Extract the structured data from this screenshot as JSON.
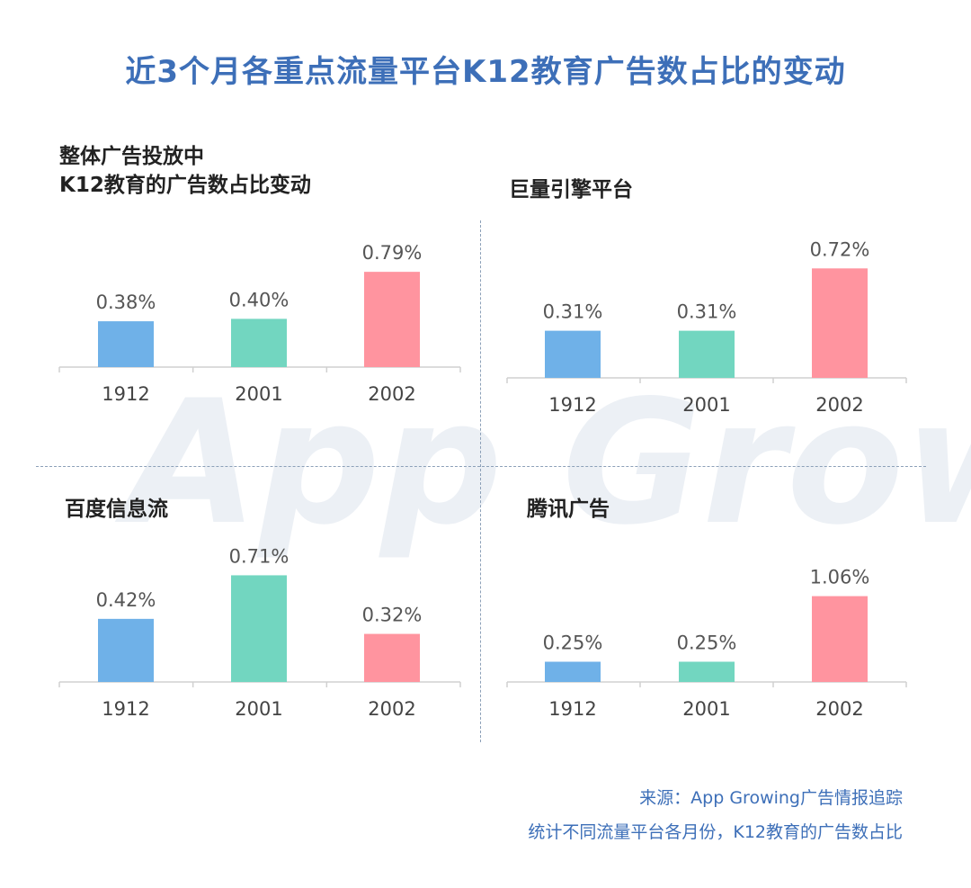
{
  "title": "近3个月各重点流量平台K12教育广告数占比的变动",
  "colors": {
    "1912": "#6fb1e8",
    "2001": "#72d6c0",
    "2002": "#ff949f",
    "title": "#3d6fb8"
  },
  "watermark": "App Growing",
  "chart_data": [
    {
      "type": "bar",
      "title": "整体广告投放中\nK12教育的广告数占比变动",
      "categories": [
        "1912",
        "2001",
        "2002"
      ],
      "values": [
        0.38,
        0.4,
        0.79
      ],
      "value_labels": [
        "0.38%",
        "0.40%",
        "0.79%"
      ],
      "ylim": [
        0,
        1.1
      ]
    },
    {
      "type": "bar",
      "title": "巨量引擎平台",
      "categories": [
        "1912",
        "2001",
        "2002"
      ],
      "values": [
        0.31,
        0.31,
        0.72
      ],
      "value_labels": [
        "0.31%",
        "0.31%",
        "0.72%"
      ],
      "ylim": [
        0,
        1.1
      ]
    },
    {
      "type": "bar",
      "title": "百度信息流",
      "categories": [
        "1912",
        "2001",
        "2002"
      ],
      "values": [
        0.42,
        0.71,
        0.32
      ],
      "value_labels": [
        "0.42%",
        "0.71%",
        "0.32%"
      ],
      "ylim": [
        0,
        1.1
      ]
    },
    {
      "type": "bar",
      "title": "腾讯广告",
      "categories": [
        "1912",
        "2001",
        "2002"
      ],
      "values": [
        0.25,
        0.25,
        1.06
      ],
      "value_labels": [
        "0.25%",
        "0.25%",
        "1.06%"
      ],
      "ylim": [
        0,
        1.1
      ]
    }
  ],
  "footer": {
    "source": "来源：App Growing广告情报追踪",
    "note": "统计不同流量平台各月份，K12教育的广告数占比"
  }
}
